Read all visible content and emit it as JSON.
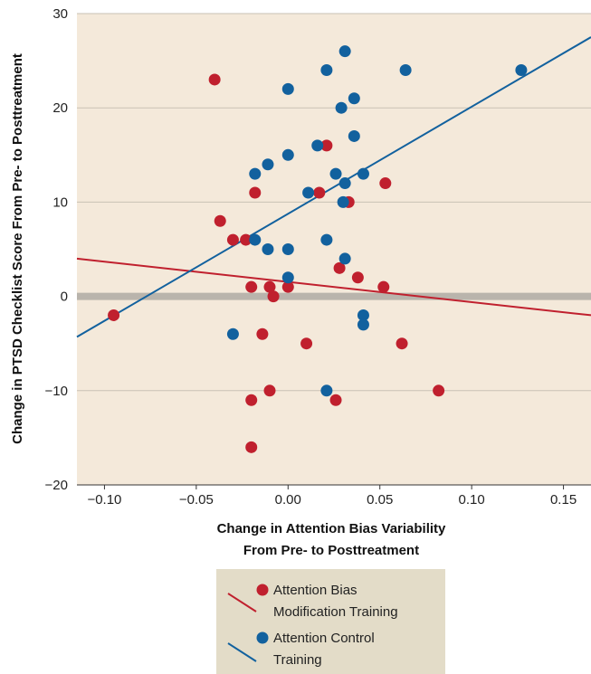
{
  "chart_data": {
    "type": "scatter",
    "xlabel": [
      "Change in Attention Bias Variability",
      "From Pre- to Posttreatment"
    ],
    "ylabel": "Change in PTSD Checklist Score From Pre- to Posttreatment",
    "xlim": [
      -0.115,
      0.165
    ],
    "ylim": [
      -20,
      30
    ],
    "x_ticks": [
      -0.1,
      -0.05,
      0.0,
      0.05,
      0.1,
      0.15
    ],
    "x_tick_labels": [
      "−0.10",
      "−0.05",
      "0.00",
      "0.05",
      "0.10",
      "0.15"
    ],
    "y_ticks": [
      -20,
      -10,
      0,
      10,
      20,
      30
    ],
    "y_tick_labels": [
      "−20",
      "−10",
      "0",
      "10",
      "20",
      "30"
    ],
    "grid": true,
    "reference_line_y": 0,
    "legend_placement": "bottom",
    "colors": {
      "plot_background": "#f4e9da",
      "grid": "#c9c1b4",
      "zero_line": "#b9b4ac",
      "legend_background": "#e3dcc8",
      "abm": "#c0202e",
      "act": "#12619e"
    },
    "series": [
      {
        "name": [
          "Attention Bias",
          "Modification Training"
        ],
        "color": "#c0202e",
        "points": [
          [
            -0.095,
            -2
          ],
          [
            -0.04,
            23
          ],
          [
            -0.037,
            8
          ],
          [
            -0.03,
            6
          ],
          [
            -0.023,
            6
          ],
          [
            -0.02,
            1
          ],
          [
            -0.02,
            -11
          ],
          [
            -0.02,
            -16
          ],
          [
            -0.018,
            11
          ],
          [
            -0.014,
            -4
          ],
          [
            -0.01,
            1
          ],
          [
            -0.01,
            -10
          ],
          [
            -0.008,
            0
          ],
          [
            -0.0,
            1
          ],
          [
            0.01,
            -5
          ],
          [
            0.017,
            11
          ],
          [
            0.021,
            16
          ],
          [
            0.026,
            -11
          ],
          [
            0.028,
            3
          ],
          [
            0.033,
            10
          ],
          [
            0.038,
            2
          ],
          [
            0.052,
            1
          ],
          [
            0.053,
            12
          ],
          [
            0.062,
            -5
          ],
          [
            0.082,
            -10
          ]
        ],
        "fit": {
          "x": [
            -0.115,
            0.165
          ],
          "y": [
            4.0,
            -2.0
          ]
        }
      },
      {
        "name": [
          "Attention Control",
          "Training"
        ],
        "color": "#12619e",
        "points": [
          [
            -0.03,
            -4
          ],
          [
            -0.018,
            6
          ],
          [
            -0.018,
            13
          ],
          [
            -0.011,
            14
          ],
          [
            -0.011,
            5
          ],
          [
            -0.0,
            22
          ],
          [
            -0.0,
            15
          ],
          [
            -0.0,
            5
          ],
          [
            -0.0,
            2
          ],
          [
            0.011,
            11
          ],
          [
            0.016,
            16
          ],
          [
            0.021,
            24
          ],
          [
            0.021,
            6
          ],
          [
            0.021,
            -10
          ],
          [
            0.026,
            13
          ],
          [
            0.029,
            20
          ],
          [
            0.03,
            10
          ],
          [
            0.031,
            26
          ],
          [
            0.031,
            12
          ],
          [
            0.031,
            4
          ],
          [
            0.036,
            21
          ],
          [
            0.036,
            17
          ],
          [
            0.041,
            13
          ],
          [
            0.041,
            -2
          ],
          [
            0.041,
            -3
          ],
          [
            0.064,
            24
          ],
          [
            0.127,
            24
          ]
        ],
        "fit": {
          "x": [
            -0.115,
            0.165
          ],
          "y": [
            -4.3,
            27.5
          ]
        }
      }
    ]
  }
}
